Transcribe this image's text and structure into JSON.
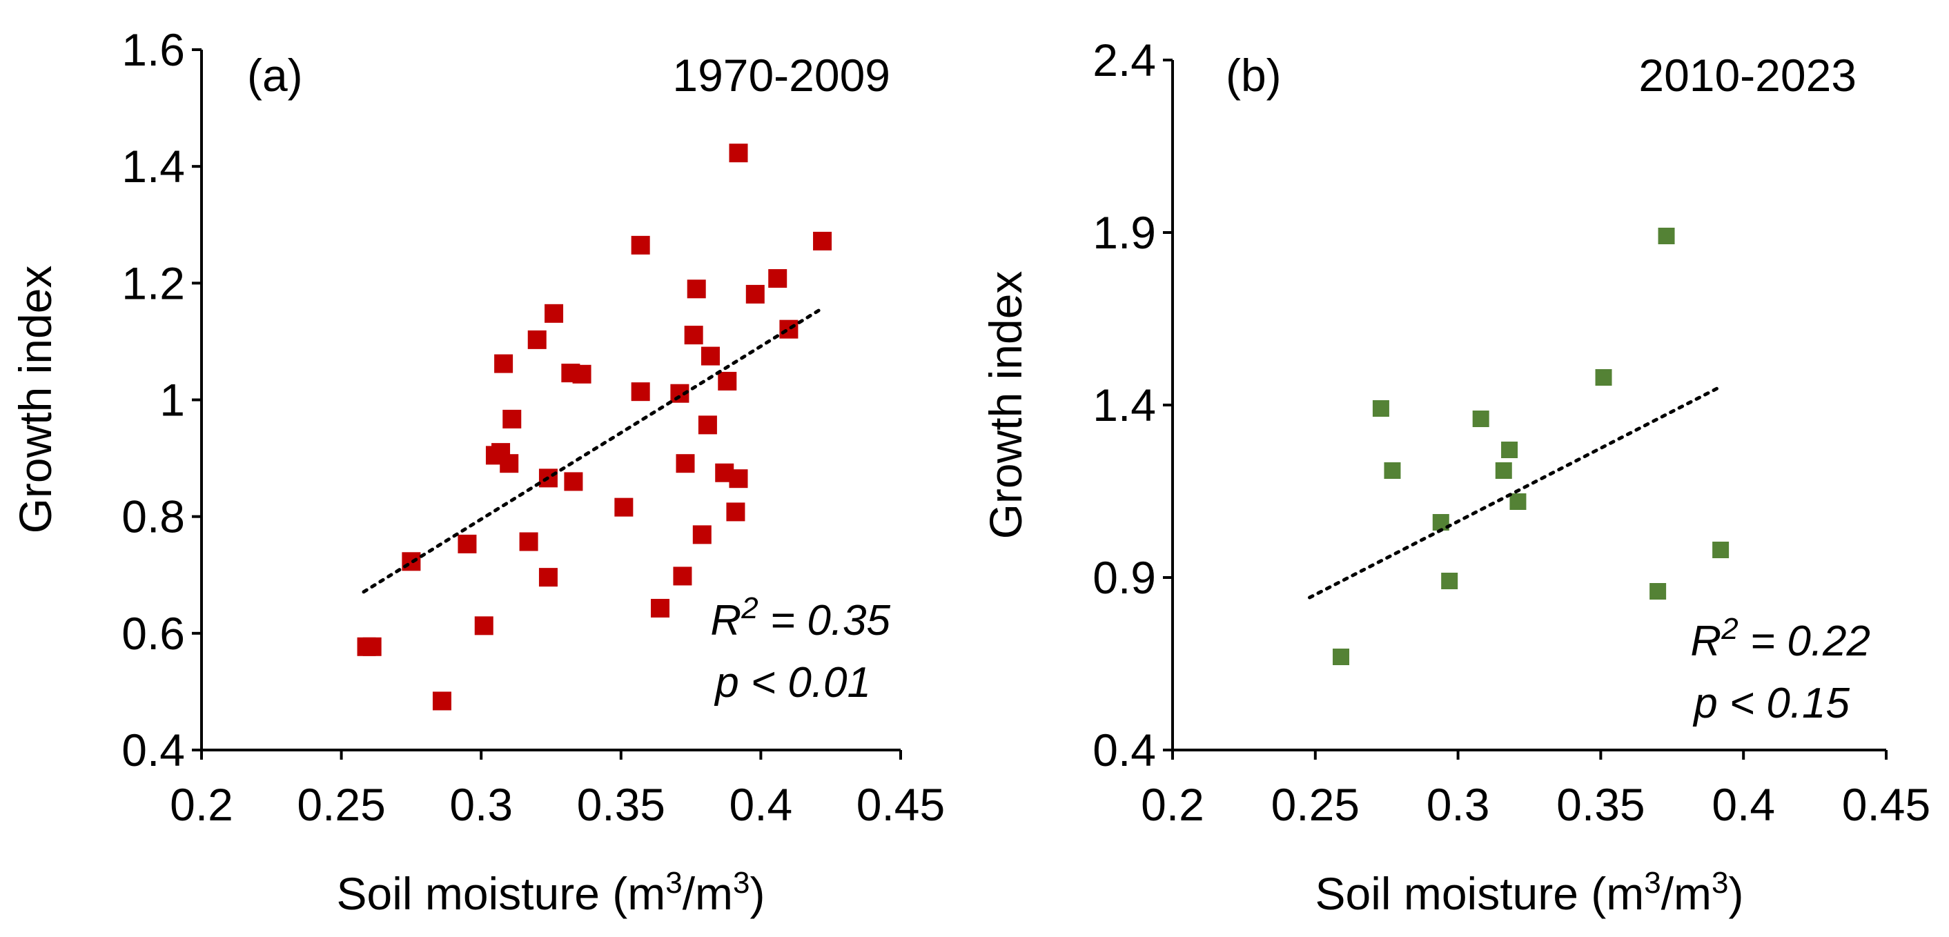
{
  "chart_data": [
    {
      "type": "scatter",
      "panel_label": "(a)",
      "title": "1970-2009",
      "xlabel": "Soil moisture",
      "xlabel_unit": "(m³/m³)",
      "ylabel": "Growth index",
      "xlim": [
        0.2,
        0.45
      ],
      "ylim": [
        0.4,
        1.6
      ],
      "xticks": [
        "0.2",
        "0.25",
        "0.3",
        "0.35",
        "0.4",
        "0.45"
      ],
      "yticks": [
        "0.4",
        "0.6",
        "0.8",
        "1",
        "1.2",
        "1.4",
        "1.6"
      ],
      "marker_color": "#C00000",
      "stats": {
        "r2": "R² = 0.35",
        "p": "p < 0.01"
      },
      "trendline": {
        "x": [
          0.258,
          0.422
        ],
        "y": [
          0.671,
          1.157
        ]
      },
      "series": [
        {
          "name": "1970-2009",
          "points": [
            {
              "x": 0.259,
              "y": 0.577
            },
            {
              "x": 0.261,
              "y": 0.577
            },
            {
              "x": 0.275,
              "y": 0.723
            },
            {
              "x": 0.286,
              "y": 0.484
            },
            {
              "x": 0.295,
              "y": 0.753
            },
            {
              "x": 0.301,
              "y": 0.613
            },
            {
              "x": 0.305,
              "y": 0.905
            },
            {
              "x": 0.307,
              "y": 0.91
            },
            {
              "x": 0.308,
              "y": 1.062
            },
            {
              "x": 0.31,
              "y": 0.891
            },
            {
              "x": 0.311,
              "y": 0.967
            },
            {
              "x": 0.317,
              "y": 0.757
            },
            {
              "x": 0.32,
              "y": 1.103
            },
            {
              "x": 0.324,
              "y": 0.866
            },
            {
              "x": 0.324,
              "y": 0.696
            },
            {
              "x": 0.326,
              "y": 1.148
            },
            {
              "x": 0.332,
              "y": 1.046
            },
            {
              "x": 0.333,
              "y": 0.86
            },
            {
              "x": 0.336,
              "y": 1.044
            },
            {
              "x": 0.351,
              "y": 0.816
            },
            {
              "x": 0.357,
              "y": 1.014
            },
            {
              "x": 0.357,
              "y": 1.265
            },
            {
              "x": 0.364,
              "y": 0.643
            },
            {
              "x": 0.371,
              "y": 1.011
            },
            {
              "x": 0.372,
              "y": 0.698
            },
            {
              "x": 0.373,
              "y": 0.891
            },
            {
              "x": 0.376,
              "y": 1.111
            },
            {
              "x": 0.377,
              "y": 1.19
            },
            {
              "x": 0.379,
              "y": 0.769
            },
            {
              "x": 0.381,
              "y": 0.957
            },
            {
              "x": 0.382,
              "y": 1.075
            },
            {
              "x": 0.387,
              "y": 0.875
            },
            {
              "x": 0.388,
              "y": 1.032
            },
            {
              "x": 0.391,
              "y": 0.808
            },
            {
              "x": 0.392,
              "y": 0.865
            },
            {
              "x": 0.392,
              "y": 1.423
            },
            {
              "x": 0.398,
              "y": 1.181
            },
            {
              "x": 0.406,
              "y": 1.208
            },
            {
              "x": 0.41,
              "y": 1.121
            },
            {
              "x": 0.422,
              "y": 1.272
            }
          ]
        }
      ]
    },
    {
      "type": "scatter",
      "panel_label": "(b)",
      "title": "2010-2023",
      "xlabel": "Soil moisture",
      "xlabel_unit": "(m³/m³)",
      "ylabel": "Growth index",
      "xlim": [
        0.2,
        0.45
      ],
      "ylim": [
        0.4,
        2.4
      ],
      "xticks": [
        "0.2",
        "0.25",
        "0.3",
        "0.35",
        "0.4",
        "0.45"
      ],
      "yticks": [
        "0.4",
        "0.9",
        "1.4",
        "1.9",
        "2.4"
      ],
      "marker_color": "#548235",
      "stats": {
        "r2": "R² = 0.22",
        "p": "p < 0.15"
      },
      "trendline": {
        "x": [
          0.248,
          0.391
        ],
        "y": [
          0.842,
          1.449
        ]
      },
      "series": [
        {
          "name": "2010-2023",
          "points": [
            {
              "x": 0.259,
              "y": 0.67
            },
            {
              "x": 0.273,
              "y": 1.39
            },
            {
              "x": 0.277,
              "y": 1.21
            },
            {
              "x": 0.294,
              "y": 1.06
            },
            {
              "x": 0.297,
              "y": 0.89
            },
            {
              "x": 0.308,
              "y": 1.36
            },
            {
              "x": 0.316,
              "y": 1.21
            },
            {
              "x": 0.318,
              "y": 1.27
            },
            {
              "x": 0.321,
              "y": 1.12
            },
            {
              "x": 0.351,
              "y": 1.48
            },
            {
              "x": 0.37,
              "y": 0.86
            },
            {
              "x": 0.373,
              "y": 1.89
            },
            {
              "x": 0.392,
              "y": 0.98
            }
          ]
        }
      ]
    }
  ]
}
